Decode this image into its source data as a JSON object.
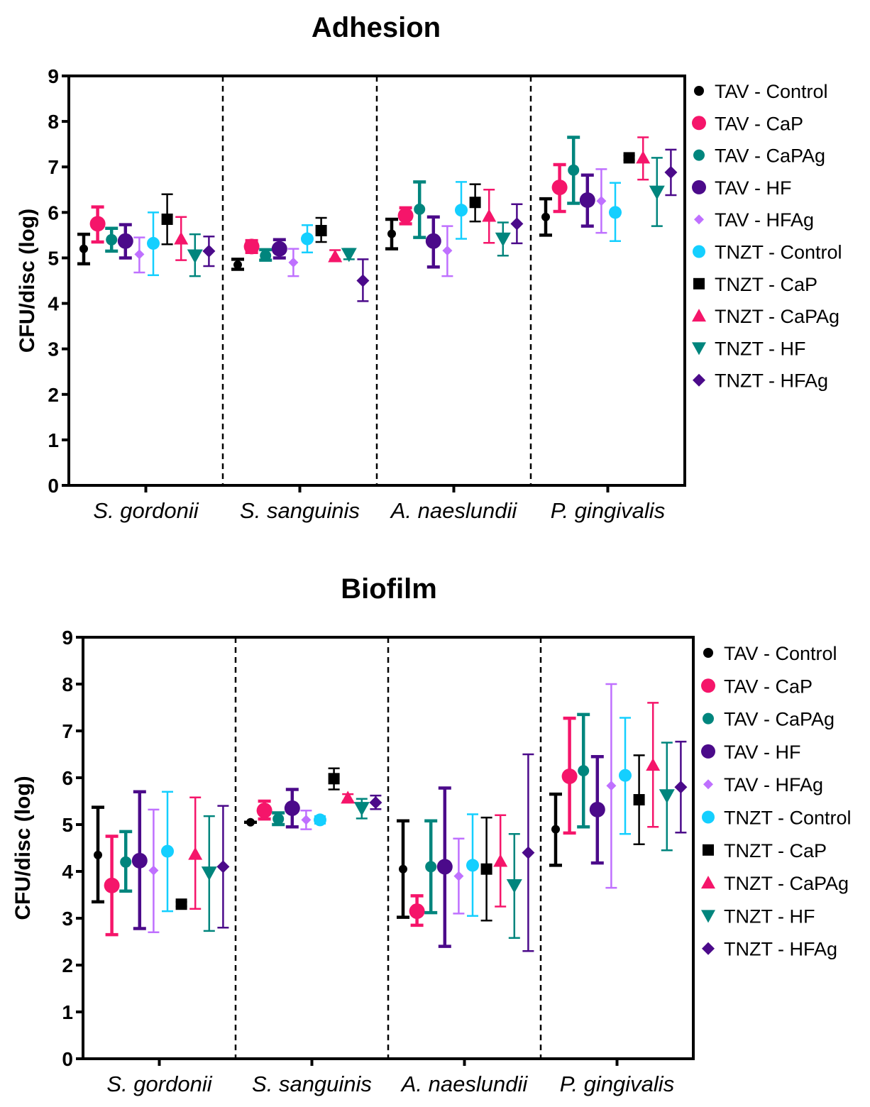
{
  "series_styles": [
    {
      "name": "TAV - Control",
      "color": "#000000",
      "marker": "circle",
      "size": 6,
      "thick": true
    },
    {
      "name": "TAV - CaP",
      "color": "#F5156A",
      "marker": "circle",
      "size": 11,
      "thick": true
    },
    {
      "name": "TAV - CaPAg",
      "color": "#00857D",
      "marker": "circle",
      "size": 8,
      "thick": true
    },
    {
      "name": "TAV - HF",
      "color": "#4B0A8A",
      "marker": "circle",
      "size": 11,
      "thick": true
    },
    {
      "name": "TAV - HFAg",
      "color": "#BF70FF",
      "marker": "diamond",
      "size": 7,
      "thick": false
    },
    {
      "name": "TNZT - Control",
      "color": "#14CFFF",
      "marker": "circle",
      "size": 9,
      "thick": false
    },
    {
      "name": "TNZT - CaP",
      "color": "#000000",
      "marker": "square",
      "size": 8,
      "thick": false
    },
    {
      "name": "TNZT - CaPAg",
      "color": "#F5156A",
      "marker": "triangle",
      "size": 10,
      "thick": false
    },
    {
      "name": "TNZT - HF",
      "color": "#00857D",
      "marker": "triangle-down",
      "size": 11,
      "thick": false
    },
    {
      "name": "TNZT - HFAg",
      "color": "#4B0A8A",
      "marker": "diamond",
      "size": 9,
      "thick": false
    }
  ],
  "chart_data": [
    {
      "type": "scatter",
      "title": "Adhesion",
      "xlabel": "",
      "ylabel": "CFU/disc (log)",
      "ylim": [
        0,
        9
      ],
      "yticks": [
        "0",
        "1",
        "2",
        "3",
        "4",
        "5",
        "6",
        "7",
        "8",
        "9"
      ],
      "categories": [
        "S. gordonii",
        "S. sanguinis",
        "A. naeslundii",
        "P. gingivalis"
      ],
      "legend": "right",
      "series": [
        {
          "name": "TAV - Control",
          "values": [
            5.2,
            4.85,
            5.53,
            5.9
          ],
          "lo": [
            4.87,
            4.75,
            5.2,
            5.5
          ],
          "hi": [
            5.52,
            4.97,
            5.85,
            6.3
          ]
        },
        {
          "name": "TAV - CaP",
          "values": [
            5.75,
            5.25,
            5.93,
            6.55
          ],
          "lo": [
            5.35,
            5.12,
            5.75,
            6.02
          ],
          "hi": [
            6.12,
            5.38,
            6.1,
            7.05
          ]
        },
        {
          "name": "TAV - CaPAg",
          "values": [
            5.4,
            5.05,
            6.07,
            6.93
          ],
          "lo": [
            5.15,
            4.95,
            5.45,
            6.2
          ],
          "hi": [
            5.65,
            5.18,
            6.67,
            7.65
          ]
        },
        {
          "name": "TAV - HF",
          "values": [
            5.37,
            5.2,
            5.37,
            6.27
          ],
          "lo": [
            5.0,
            5.0,
            4.8,
            5.7
          ],
          "hi": [
            5.73,
            5.4,
            5.9,
            6.82
          ]
        },
        {
          "name": "TAV - HFAg",
          "values": [
            5.08,
            4.9,
            5.16,
            6.25
          ],
          "lo": [
            4.68,
            4.6,
            4.6,
            5.55
          ],
          "hi": [
            5.45,
            5.2,
            5.7,
            6.95
          ]
        },
        {
          "name": "TNZT - Control",
          "values": [
            5.32,
            5.42,
            6.05,
            6.0
          ],
          "lo": [
            4.62,
            5.12,
            5.42,
            5.37
          ],
          "hi": [
            6.0,
            5.72,
            6.67,
            6.65
          ]
        },
        {
          "name": "TNZT - CaP",
          "values": [
            5.85,
            5.6,
            6.22,
            7.2
          ],
          "lo": [
            5.3,
            5.35,
            5.8,
            7.15
          ],
          "hi": [
            6.4,
            5.88,
            6.62,
            7.25
          ]
        },
        {
          "name": "TNZT - CaPAg",
          "values": [
            5.42,
            5.03,
            5.92,
            7.2
          ],
          "lo": [
            4.95,
            4.97,
            5.33,
            6.72
          ],
          "hi": [
            5.9,
            5.17,
            6.5,
            7.65
          ]
        },
        {
          "name": "TNZT - HF",
          "values": [
            5.05,
            5.08,
            5.42,
            6.45
          ],
          "lo": [
            4.6,
            4.97,
            5.05,
            5.7
          ],
          "hi": [
            5.52,
            5.2,
            5.78,
            7.2
          ]
        },
        {
          "name": "TNZT - HFAg",
          "values": [
            5.15,
            4.5,
            5.75,
            6.88
          ],
          "lo": [
            4.82,
            4.05,
            5.32,
            6.38
          ],
          "hi": [
            5.47,
            4.97,
            6.18,
            7.38
          ]
        }
      ]
    },
    {
      "type": "scatter",
      "title": "Biofilm",
      "xlabel": "",
      "ylabel": "CFU/disc (log)",
      "ylim": [
        0,
        9
      ],
      "yticks": [
        "0",
        "1",
        "2",
        "3",
        "4",
        "5",
        "6",
        "7",
        "8",
        "9"
      ],
      "categories": [
        "S. gordonii",
        "S. sanguinis",
        "A. naeslundii",
        "P. gingivalis"
      ],
      "legend": "right",
      "series": [
        {
          "name": "TAV - Control",
          "values": [
            4.35,
            5.05,
            4.05,
            4.9
          ],
          "lo": [
            3.35,
            5.05,
            3.02,
            4.13
          ],
          "hi": [
            5.37,
            5.05,
            5.08,
            5.65
          ]
        },
        {
          "name": "TAV - CaP",
          "values": [
            3.7,
            5.3,
            3.15,
            6.03
          ],
          "lo": [
            2.65,
            5.12,
            2.85,
            4.82
          ],
          "hi": [
            4.75,
            5.5,
            3.48,
            7.27
          ]
        },
        {
          "name": "TAV - CaPAg",
          "values": [
            4.2,
            5.12,
            4.1,
            6.15
          ],
          "lo": [
            3.58,
            5.0,
            3.12,
            4.95
          ],
          "hi": [
            4.85,
            5.25,
            5.08,
            7.35
          ]
        },
        {
          "name": "TAV - HF",
          "values": [
            4.23,
            5.35,
            4.1,
            5.32
          ],
          "lo": [
            2.78,
            4.95,
            2.4,
            4.18
          ],
          "hi": [
            5.7,
            5.75,
            5.78,
            6.45
          ]
        },
        {
          "name": "TAV - HFAg",
          "values": [
            4.02,
            5.1,
            3.9,
            5.83
          ],
          "lo": [
            2.7,
            4.9,
            3.1,
            3.65
          ],
          "hi": [
            5.32,
            5.3,
            4.7,
            8.0
          ]
        },
        {
          "name": "TNZT - Control",
          "values": [
            4.43,
            5.1,
            4.13,
            6.05
          ],
          "lo": [
            3.15,
            5.02,
            3.05,
            4.8
          ],
          "hi": [
            5.7,
            5.18,
            5.22,
            7.28
          ]
        },
        {
          "name": "TNZT - CaP",
          "values": [
            3.3,
            5.98,
            4.05,
            5.53
          ],
          "lo": [
            3.25,
            5.75,
            2.95,
            4.58
          ],
          "hi": [
            3.35,
            6.2,
            5.15,
            6.48
          ]
        },
        {
          "name": "TNZT - CaPAg",
          "values": [
            4.37,
            5.57,
            4.22,
            6.27
          ],
          "lo": [
            3.2,
            5.5,
            3.25,
            4.95
          ],
          "hi": [
            5.58,
            5.65,
            5.2,
            7.6
          ]
        },
        {
          "name": "TNZT - HF",
          "values": [
            3.97,
            5.35,
            3.7,
            5.62
          ],
          "lo": [
            2.73,
            5.13,
            2.58,
            4.45
          ],
          "hi": [
            5.18,
            5.55,
            4.8,
            6.75
          ]
        },
        {
          "name": "TNZT - HFAg",
          "values": [
            4.1,
            5.47,
            4.4,
            5.8
          ],
          "lo": [
            2.8,
            5.33,
            2.3,
            4.83
          ],
          "hi": [
            5.4,
            5.62,
            6.5,
            6.77
          ]
        }
      ]
    }
  ]
}
